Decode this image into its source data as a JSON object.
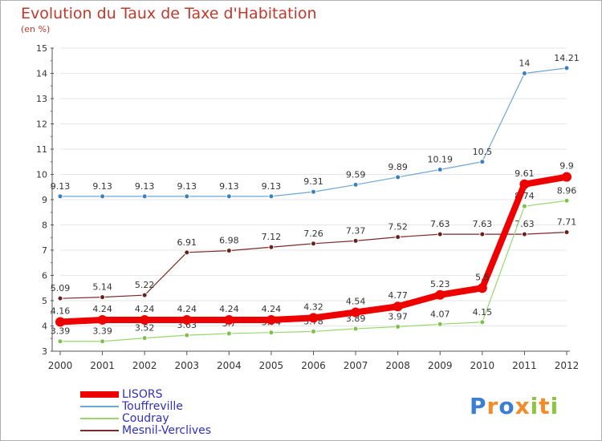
{
  "title": "Evolution du Taux de Taxe d'Habitation",
  "subtitle": "(en %)",
  "logo_text": "Proxiti",
  "colors": {
    "title": "#c0392b",
    "grid": "#e6e6e6",
    "axis": "#555555",
    "legend_text": "#3030c0"
  },
  "chart_data": {
    "type": "line",
    "x": [
      2000,
      2001,
      2002,
      2003,
      2004,
      2005,
      2006,
      2007,
      2008,
      2009,
      2010,
      2011,
      2012
    ],
    "ylim": [
      3,
      15
    ],
    "yticks": [
      3,
      4,
      5,
      6,
      7,
      8,
      9,
      10,
      11,
      12,
      13,
      14,
      15
    ],
    "grid": true,
    "legend": "bottom-left",
    "series": [
      {
        "name": "Touffreville",
        "color": "#6ea6d6",
        "point_color": "#3a7fbf",
        "width": 1.2,
        "r": 3,
        "values": [
          9.13,
          9.13,
          9.13,
          9.13,
          9.13,
          9.13,
          9.31,
          9.59,
          9.89,
          10.19,
          10.5,
          14,
          14.21
        ],
        "labels": [
          "9.13",
          "9.13",
          "9.13",
          "9.13",
          "9.13",
          "9.13",
          "9.31",
          "9.59",
          "9.89",
          "10.19",
          "10.5",
          "14",
          "14.21"
        ]
      },
      {
        "name": "Mesnil-Verclives",
        "color": "#7a2a2a",
        "point_color": "#6a1f1f",
        "width": 1.2,
        "r": 3,
        "values": [
          5.09,
          5.14,
          5.22,
          6.91,
          6.98,
          7.12,
          7.26,
          7.37,
          7.52,
          7.63,
          7.63,
          7.63,
          7.71
        ],
        "labels": [
          "5.09",
          "5.14",
          "5.22",
          "6.91",
          "6.98",
          "7.12",
          "7.26",
          "7.37",
          "7.52",
          "7.63",
          "7.63",
          "7.63",
          "7.71"
        ]
      },
      {
        "name": "Coudray",
        "color": "#99d66e",
        "point_color": "#7cc24a",
        "width": 1.2,
        "r": 3,
        "values": [
          3.39,
          3.39,
          3.52,
          3.63,
          3.7,
          3.74,
          3.78,
          3.89,
          3.97,
          4.07,
          4.15,
          8.74,
          8.96
        ],
        "labels": [
          "3.39",
          "3.39",
          "3.52",
          "3.63",
          "3.7",
          "3.74",
          "3.78",
          "3.89",
          "3.97",
          "4.07",
          "4.15",
          "8.74",
          "8.96"
        ]
      },
      {
        "name": "LISORS",
        "color": "#ee0000",
        "point_color": "#ee0000",
        "width": 8,
        "r": 6,
        "values": [
          4.16,
          4.24,
          4.24,
          4.24,
          4.24,
          4.24,
          4.32,
          4.54,
          4.77,
          5.23,
          5.5,
          9.61,
          9.9
        ],
        "labels": [
          "4.16",
          "4.24",
          "4.24",
          "4.24",
          "4.24",
          "4.24",
          "4.32",
          "4.54",
          "4.77",
          "5.23",
          "5.5",
          "9.61",
          "9.9"
        ]
      }
    ],
    "legend_order": [
      "LISORS",
      "Touffreville",
      "Coudray",
      "Mesnil-Verclives"
    ]
  }
}
